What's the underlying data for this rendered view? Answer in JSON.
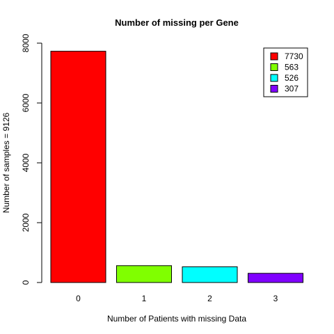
{
  "chart_data": {
    "type": "bar",
    "title": "Number of missing per Gene",
    "xlabel": "Number of Patients with missing Data",
    "ylabel": "Number of samples = 9126",
    "categories": [
      "0",
      "1",
      "2",
      "3"
    ],
    "values": [
      7730,
      563,
      526,
      307
    ],
    "colors": [
      "#ff0000",
      "#80ff00",
      "#00ffff",
      "#8000ff"
    ],
    "ylim": [
      0,
      8000
    ],
    "yticks": [
      "0",
      "2000",
      "4000",
      "6000",
      "8000"
    ],
    "grid": false,
    "legend": {
      "position": "top-right",
      "entries": [
        "7730",
        "563",
        "526",
        "307"
      ]
    }
  }
}
